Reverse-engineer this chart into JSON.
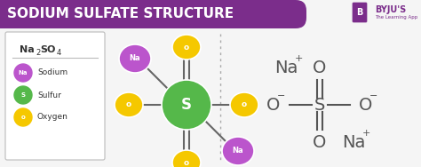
{
  "title": "SODIUM SULFATE STRUCTURE",
  "title_bg_color": "#7B2D8B",
  "title_text_color": "#FFFFFF",
  "bg_color": "#F5F5F5",
  "sulfur_color": "#55B84A",
  "sodium_color": "#BB55CC",
  "oxygen_color": "#F5C800",
  "legend_items": [
    {
      "label": "Sodium",
      "color": "#BB55CC",
      "letter": "Na"
    },
    {
      "label": "Sulfur",
      "color": "#55B84A",
      "letter": "S"
    },
    {
      "label": "Oxygen",
      "color": "#F5C800",
      "letter": "o"
    }
  ],
  "byju_color": "#7B2D8B",
  "text_color": "#555555"
}
